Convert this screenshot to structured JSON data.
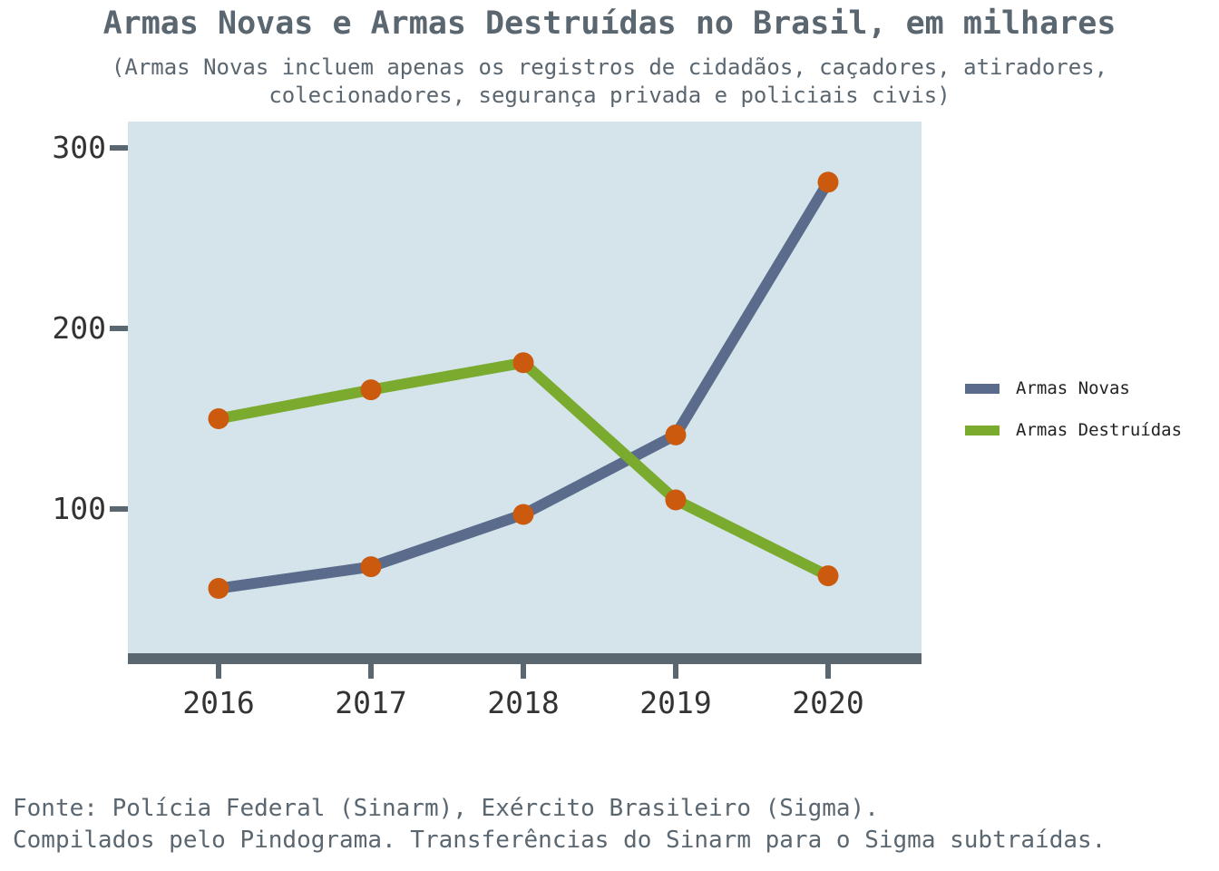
{
  "chart_data": {
    "type": "line",
    "title": "Armas Novas e Armas Destruídas no Brasil, em milhares",
    "subtitle": [
      "(Armas Novas incluem apenas os registros de cidadãos, caçadores, atiradores,",
      "colecionadores, segurança privada e policiais civis)"
    ],
    "categories": [
      "2016",
      "2017",
      "2018",
      "2019",
      "2020"
    ],
    "series": [
      {
        "name": "Armas Novas",
        "color": "#5a6b8c",
        "values": [
          56,
          68,
          97,
          141,
          281
        ]
      },
      {
        "name": "Armas Destruídas",
        "color": "#7aaa2e",
        "values": [
          150,
          166,
          181,
          105,
          63
        ]
      }
    ],
    "marker_color": "#cc5a0e",
    "plot_background": "#d4e4ea",
    "axis_color": "#5a6670",
    "yticks": [
      "100",
      "200",
      "300"
    ],
    "ylim": [
      15,
      315
    ],
    "xlabel": "",
    "ylabel": "",
    "grid": false,
    "legend_position": "right",
    "source": [
      "Fonte: Polícia Federal (Sinarm), Exército Brasileiro (Sigma).",
      "Compilados pelo Pindograma. Transferências do Sinarm para o Sigma subtraídas."
    ]
  }
}
